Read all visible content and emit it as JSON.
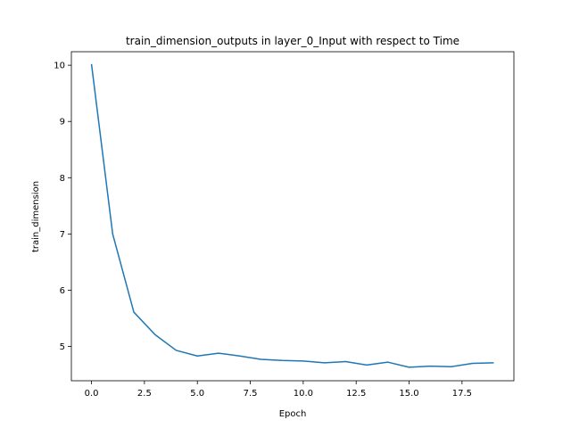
{
  "chart_data": {
    "type": "line",
    "title": "train_dimension_outputs in layer_0_Input with respect to Time",
    "xlabel": "Epoch",
    "ylabel": "train_dimension",
    "xlim": [
      -0.95,
      19.95
    ],
    "ylim": [
      4.39,
      10.24
    ],
    "grid": false,
    "x_ticks": [
      0,
      2.5,
      5,
      7.5,
      10,
      12.5,
      15,
      17.5
    ],
    "x_tick_labels": [
      "0.0",
      "2.5",
      "5.0",
      "7.5",
      "10.0",
      "12.5",
      "15.0",
      "17.5"
    ],
    "y_ticks": [
      5,
      6,
      7,
      8,
      9,
      10
    ],
    "y_tick_labels": [
      "5",
      "6",
      "7",
      "8",
      "9",
      "10"
    ],
    "series": [
      {
        "color": "#1f77b4",
        "x": [
          0,
          1,
          2,
          3,
          4,
          5,
          6,
          7,
          8,
          9,
          10,
          11,
          12,
          13,
          14,
          15,
          16,
          17,
          18,
          19
        ],
        "y": [
          10.02,
          7.0,
          5.61,
          5.21,
          4.93,
          4.83,
          4.88,
          4.83,
          4.77,
          4.75,
          4.74,
          4.71,
          4.73,
          4.67,
          4.72,
          4.63,
          4.65,
          4.64,
          4.7,
          4.71
        ]
      }
    ]
  }
}
